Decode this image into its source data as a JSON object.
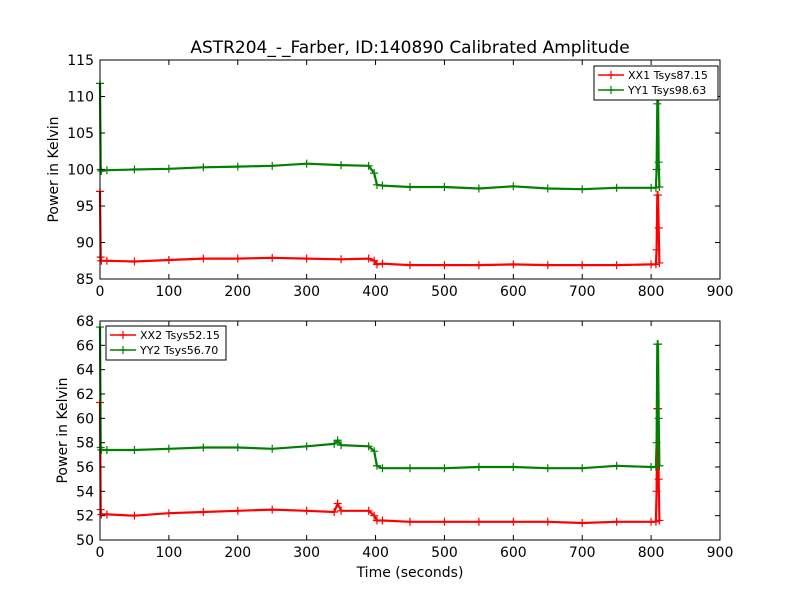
{
  "figure_title": "ASTR204_-_Farber, ID:140890 Calibrated Amplitude",
  "chart_data": [
    {
      "type": "line",
      "title": "ASTR204_-_Farber, ID:140890 Calibrated Amplitude",
      "xlabel": "",
      "ylabel": "Power in Kelvin",
      "xlim": [
        0,
        900
      ],
      "ylim": [
        85,
        115
      ],
      "xticks": [
        0,
        100,
        200,
        300,
        400,
        500,
        600,
        700,
        800,
        900
      ],
      "yticks": [
        85,
        90,
        95,
        100,
        105,
        110,
        115
      ],
      "legend_position": "top-right",
      "grid": false,
      "series": [
        {
          "name": "XX1 Tsys87.15",
          "color": "#ff0000",
          "x": [
            0,
            1,
            2,
            10,
            50,
            100,
            150,
            200,
            250,
            300,
            350,
            390,
            398,
            402,
            410,
            450,
            500,
            550,
            600,
            650,
            700,
            750,
            800,
            807,
            808,
            809,
            810,
            811,
            812
          ],
          "y": [
            97.0,
            88.0,
            87.5,
            87.5,
            87.4,
            87.6,
            87.8,
            87.8,
            87.9,
            87.8,
            87.7,
            87.8,
            87.5,
            87.0,
            87.1,
            86.9,
            86.9,
            86.9,
            87.0,
            86.9,
            86.9,
            86.9,
            87.0,
            87.0,
            89.0,
            96.5,
            96.5,
            92.0,
            87.2
          ]
        },
        {
          "name": "YY1 Tsys98.63",
          "color": "#008000",
          "x": [
            0,
            1,
            2,
            10,
            50,
            100,
            150,
            200,
            250,
            300,
            350,
            390,
            398,
            402,
            410,
            450,
            500,
            550,
            600,
            650,
            700,
            750,
            800,
            807,
            808,
            809,
            810,
            811,
            812
          ],
          "y": [
            111.8,
            100.0,
            99.8,
            99.9,
            100.0,
            100.1,
            100.3,
            100.4,
            100.5,
            100.8,
            100.6,
            100.5,
            99.5,
            97.9,
            97.8,
            97.6,
            97.6,
            97.4,
            97.7,
            97.4,
            97.3,
            97.5,
            97.5,
            97.5,
            100.0,
            109.0,
            111.2,
            101.0,
            97.6
          ]
        }
      ]
    },
    {
      "type": "line",
      "title": "",
      "xlabel": "Time (seconds)",
      "ylabel": "Power in Kelvin",
      "xlim": [
        0,
        900
      ],
      "ylim": [
        50,
        68
      ],
      "xticks": [
        0,
        100,
        200,
        300,
        400,
        500,
        600,
        700,
        800,
        900
      ],
      "yticks": [
        50,
        52,
        54,
        56,
        58,
        60,
        62,
        64,
        66,
        68
      ],
      "legend_position": "top-left",
      "grid": false,
      "series": [
        {
          "name": "XX2 Tsys52.15",
          "color": "#ff0000",
          "x": [
            0,
            1,
            2,
            10,
            50,
            100,
            150,
            200,
            250,
            300,
            340,
            345,
            350,
            390,
            398,
            402,
            410,
            450,
            500,
            550,
            600,
            650,
            700,
            750,
            800,
            807,
            808,
            809,
            810,
            811,
            812
          ],
          "y": [
            61.3,
            52.5,
            52.1,
            52.1,
            52.0,
            52.2,
            52.3,
            52.4,
            52.5,
            52.4,
            52.3,
            53.0,
            52.4,
            52.4,
            52.0,
            51.6,
            51.6,
            51.5,
            51.5,
            51.5,
            51.5,
            51.5,
            51.4,
            51.5,
            51.5,
            51.5,
            54.0,
            60.8,
            60.8,
            55.0,
            51.6
          ]
        },
        {
          "name": "YY2 Tsys56.70",
          "color": "#008000",
          "x": [
            0,
            1,
            2,
            10,
            50,
            100,
            150,
            200,
            250,
            300,
            340,
            345,
            350,
            390,
            398,
            402,
            410,
            450,
            500,
            550,
            600,
            650,
            700,
            750,
            800,
            807,
            808,
            809,
            810,
            811,
            812
          ],
          "y": [
            67.5,
            57.6,
            57.4,
            57.4,
            57.4,
            57.5,
            57.6,
            57.6,
            57.5,
            57.7,
            57.9,
            58.2,
            57.8,
            57.7,
            57.3,
            56.1,
            55.9,
            55.9,
            55.9,
            56.0,
            56.0,
            55.9,
            55.9,
            56.1,
            56.0,
            56.0,
            58.0,
            66.1,
            66.1,
            60.0,
            56.1
          ]
        }
      ]
    }
  ]
}
